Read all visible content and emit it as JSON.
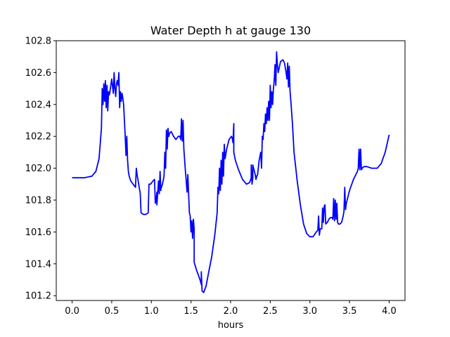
{
  "chart_data": {
    "type": "line",
    "title": "Water Depth h at gauge 130",
    "xlabel": "hours",
    "ylabel": "",
    "xlim": [
      -0.2,
      4.2
    ],
    "ylim": [
      101.17,
      102.8
    ],
    "xticks": [
      0.0,
      0.5,
      1.0,
      1.5,
      2.0,
      2.5,
      3.0,
      3.5,
      4.0
    ],
    "xtick_labels": [
      "0.0",
      "0.5",
      "1.0",
      "1.5",
      "2.0",
      "2.5",
      "3.0",
      "3.5",
      "4.0"
    ],
    "yticks": [
      101.2,
      101.4,
      101.6,
      101.8,
      102.0,
      102.2,
      102.4,
      102.6,
      102.8
    ],
    "ytick_labels": [
      "101.2",
      "101.4",
      "101.6",
      "101.8",
      "102.0",
      "102.2",
      "102.4",
      "102.6",
      "102.8"
    ],
    "grid": false,
    "series": [
      {
        "color": "#0000ff",
        "x": [
          0.0,
          0.15,
          0.25,
          0.3,
          0.34,
          0.37,
          0.38,
          0.39,
          0.4,
          0.41,
          0.42,
          0.43,
          0.44,
          0.45,
          0.46,
          0.47,
          0.48,
          0.5,
          0.52,
          0.53,
          0.54,
          0.55,
          0.56,
          0.57,
          0.58,
          0.59,
          0.6,
          0.61,
          0.62,
          0.63,
          0.64,
          0.65,
          0.67,
          0.68,
          0.69,
          0.7,
          0.71,
          0.72,
          0.74,
          0.77,
          0.8,
          0.81,
          0.82,
          0.84,
          0.86,
          0.87,
          0.87,
          0.9,
          0.93,
          0.96,
          0.97,
          0.99,
          1.02,
          1.04,
          1.05,
          1.06,
          1.07,
          1.07,
          1.09,
          1.1,
          1.11,
          1.12,
          1.12,
          1.14,
          1.16,
          1.17,
          1.18,
          1.19,
          1.2,
          1.21,
          1.22,
          1.23,
          1.25,
          1.28,
          1.31,
          1.34,
          1.36,
          1.37,
          1.38,
          1.39,
          1.4,
          1.41,
          1.42,
          1.43,
          1.44,
          1.45,
          1.46,
          1.47,
          1.48,
          1.49,
          1.5,
          1.51,
          1.52,
          1.53,
          1.54,
          1.54,
          1.57,
          1.6,
          1.62,
          1.63,
          1.63,
          1.64,
          1.66,
          1.69,
          1.72,
          1.76,
          1.8,
          1.83,
          1.84,
          1.85,
          1.86,
          1.87,
          1.88,
          1.89,
          1.9,
          1.91,
          1.92,
          1.93,
          1.95,
          1.98,
          2.01,
          2.02,
          2.03,
          2.04,
          2.04,
          2.06,
          2.1,
          2.15,
          2.2,
          2.24,
          2.26,
          2.26,
          2.27,
          2.28,
          2.28,
          2.31,
          2.32,
          2.33,
          2.34,
          2.36,
          2.38,
          2.39,
          2.4,
          2.41,
          2.42,
          2.43,
          2.44,
          2.45,
          2.46,
          2.47,
          2.48,
          2.49,
          2.5,
          2.51,
          2.52,
          2.53,
          2.54,
          2.55,
          2.56,
          2.57,
          2.58,
          2.59,
          2.6,
          2.63,
          2.66,
          2.68,
          2.7,
          2.71,
          2.72,
          2.73,
          2.74,
          2.75,
          2.76,
          2.78,
          2.8,
          2.84,
          2.88,
          2.92,
          2.96,
          3.0,
          3.04,
          3.08,
          3.1,
          3.11,
          3.12,
          3.13,
          3.15,
          3.16,
          3.17,
          3.18,
          3.19,
          3.2,
          3.22,
          3.24,
          3.26,
          3.27,
          3.28,
          3.29,
          3.3,
          3.31,
          3.32,
          3.33,
          3.34,
          3.35,
          3.36,
          3.38,
          3.4,
          3.42,
          3.43,
          3.44,
          3.45,
          3.46,
          3.5,
          3.55,
          3.6,
          3.61,
          3.62,
          3.63,
          3.64,
          3.65,
          3.66,
          3.68,
          3.72,
          3.78,
          3.85,
          3.9,
          3.95,
          4.0
        ],
        "y": [
          101.94,
          101.94,
          101.95,
          101.98,
          102.06,
          102.25,
          102.5,
          102.4,
          102.53,
          102.42,
          102.55,
          102.38,
          102.52,
          102.36,
          102.48,
          102.46,
          102.49,
          102.56,
          102.47,
          102.6,
          102.5,
          102.45,
          102.53,
          102.55,
          102.52,
          102.6,
          102.38,
          102.48,
          102.42,
          102.47,
          102.44,
          102.4,
          102.2,
          102.08,
          102.2,
          102.05,
          101.98,
          101.95,
          101.92,
          101.9,
          101.88,
          102.0,
          101.96,
          101.9,
          101.84,
          101.72,
          101.72,
          101.71,
          101.71,
          101.72,
          101.9,
          101.9,
          101.92,
          101.93,
          101.78,
          101.8,
          101.85,
          101.77,
          101.92,
          101.84,
          101.98,
          101.86,
          101.87,
          101.9,
          101.95,
          102.1,
          102.0,
          102.24,
          102.12,
          102.25,
          102.2,
          102.22,
          102.23,
          102.2,
          102.18,
          102.2,
          102.2,
          102.18,
          102.31,
          102.17,
          102.3,
          102.12,
          102.05,
          101.98,
          101.92,
          101.85,
          101.96,
          101.84,
          101.72,
          101.7,
          101.6,
          101.67,
          101.56,
          101.68,
          101.62,
          101.41,
          101.36,
          101.32,
          101.29,
          101.27,
          101.35,
          101.23,
          101.22,
          101.26,
          101.34,
          101.44,
          101.58,
          101.72,
          101.88,
          101.84,
          102.0,
          101.86,
          102.05,
          101.9,
          102.1,
          101.95,
          102.15,
          102.06,
          102.12,
          102.18,
          102.2,
          102.19,
          102.16,
          102.28,
          102.1,
          102.05,
          101.99,
          101.93,
          101.9,
          101.91,
          101.94,
          102.02,
          101.9,
          101.94,
          102.02,
          101.96,
          101.93,
          101.95,
          101.96,
          102.05,
          102.1,
          102.0,
          102.2,
          102.18,
          102.28,
          102.23,
          102.34,
          102.28,
          102.38,
          102.3,
          102.42,
          102.3,
          102.52,
          102.38,
          102.48,
          102.4,
          102.5,
          102.55,
          102.65,
          102.52,
          102.73,
          102.65,
          102.6,
          102.67,
          102.68,
          102.66,
          102.6,
          102.56,
          102.66,
          102.51,
          102.64,
          102.48,
          102.42,
          102.28,
          102.1,
          101.92,
          101.77,
          101.65,
          101.59,
          101.57,
          101.57,
          101.6,
          101.61,
          101.7,
          101.58,
          101.62,
          101.62,
          101.75,
          101.66,
          101.76,
          101.77,
          101.65,
          101.66,
          101.68,
          101.69,
          101.69,
          101.69,
          101.68,
          101.81,
          101.67,
          101.8,
          101.68,
          101.78,
          101.66,
          101.65,
          101.65,
          101.66,
          101.7,
          101.73,
          101.88,
          101.74,
          101.78,
          101.86,
          101.93,
          101.98,
          102.0,
          102.12,
          101.99,
          102.12,
          101.99,
          102.0,
          102.01,
          102.01,
          102.0,
          102.0,
          102.03,
          102.1,
          102.21
        ]
      }
    ]
  }
}
